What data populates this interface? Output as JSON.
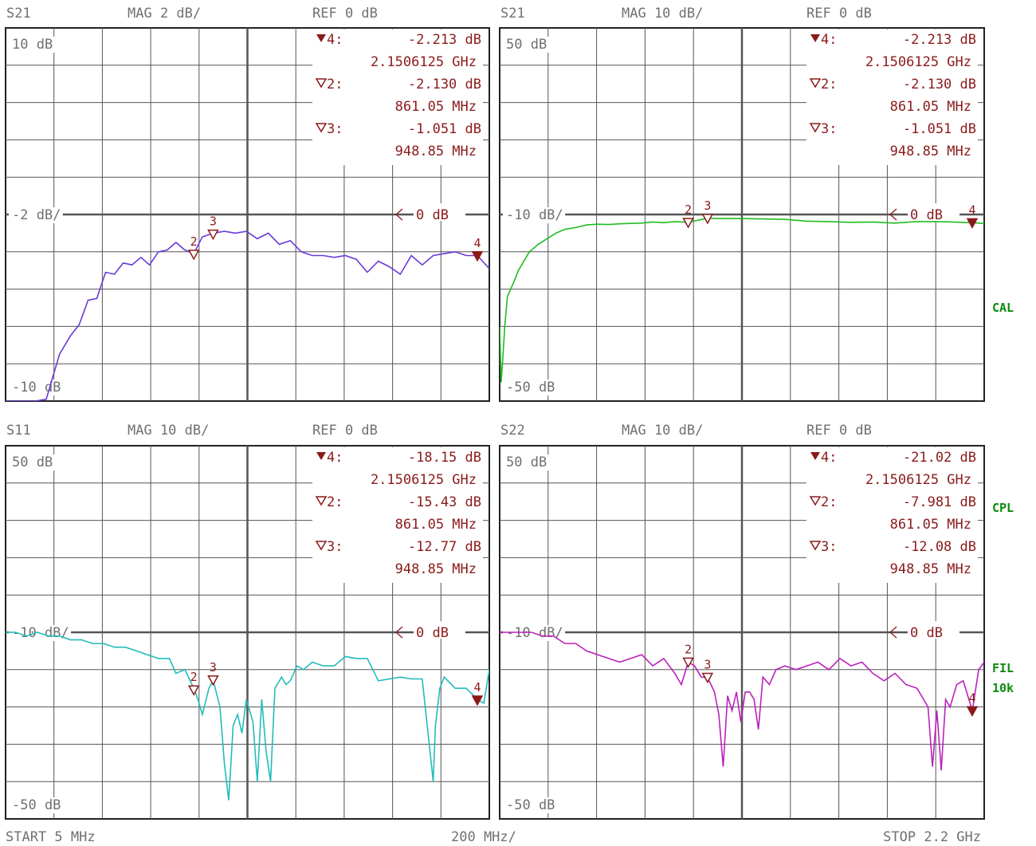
{
  "footer": {
    "start": "START  5 MHz",
    "div": "200 MHz/",
    "stop": "STOP 2.2 GHz"
  },
  "side_labels": [
    "CAL",
    "CPL",
    "FIL",
    "10k"
  ],
  "colors": {
    "grid": "#555555",
    "marker": "#8b1a1a",
    "border": "#222222"
  },
  "chart_data": [
    {
      "type": "line",
      "param": "S21",
      "scale": "MAG 2 dB/",
      "ref": "REF 0 dB",
      "top_label": "10 dB",
      "mid_label": "-2 dB/",
      "bot_label": "-10 dB",
      "ref_mark": "0 dB",
      "ylim": [
        -10,
        10
      ],
      "xlim": [
        5,
        2205
      ],
      "color": "#6a3ad8",
      "markers_text": [
        {
          "id": "4",
          "label": "4:",
          "value": "-2.213 dB",
          "freq": "2.1506125 GHz",
          "filled": true
        },
        {
          "id": "2",
          "label": "2:",
          "value": "-2.130 dB",
          "freq": "861.05 MHz",
          "filled": false
        },
        {
          "id": "3",
          "label": "3:",
          "value": "-1.051 dB",
          "freq": "948.85 MHz",
          "filled": false
        }
      ],
      "markers": [
        {
          "id": "2",
          "x": 861.05,
          "y": -2.13,
          "filled": false
        },
        {
          "id": "3",
          "x": 948.85,
          "y": -1.051,
          "filled": false
        },
        {
          "id": "4",
          "x": 2150.6,
          "y": -2.213,
          "filled": true
        }
      ],
      "x": [
        5,
        60,
        100,
        140,
        190,
        250,
        300,
        340,
        380,
        420,
        460,
        500,
        540,
        580,
        620,
        660,
        700,
        740,
        780,
        820,
        861,
        900,
        949,
        1000,
        1050,
        1100,
        1150,
        1200,
        1250,
        1300,
        1350,
        1400,
        1450,
        1500,
        1550,
        1600,
        1650,
        1700,
        1750,
        1800,
        1850,
        1900,
        1950,
        2000,
        2050,
        2100,
        2151,
        2205
      ],
      "y": [
        -10,
        -10,
        -10,
        -10,
        -9.9,
        -7.5,
        -6.5,
        -5.9,
        -4.6,
        -4.5,
        -3.1,
        -3.2,
        -2.6,
        -2.7,
        -2.3,
        -2.7,
        -2.0,
        -1.9,
        -1.5,
        -1.9,
        -2.1,
        -1.2,
        -1.0,
        -0.9,
        -1.0,
        -0.9,
        -1.3,
        -1.0,
        -1.6,
        -1.4,
        -2.0,
        -2.2,
        -2.2,
        -2.3,
        -2.2,
        -2.4,
        -3.1,
        -2.5,
        -2.8,
        -3.2,
        -2.2,
        -2.7,
        -2.2,
        -2.1,
        -2.0,
        -2.2,
        -2.2,
        -2.9
      ]
    },
    {
      "type": "line",
      "param": "S21",
      "scale": "MAG 10 dB/",
      "ref": "REF 0 dB",
      "top_label": "50 dB",
      "mid_label": "-10 dB/",
      "bot_label": "-50 dB",
      "ref_mark": "0 dB",
      "ylim": [
        -50,
        50
      ],
      "xlim": [
        5,
        2205
      ],
      "color": "#22bb22",
      "markers_text": [
        {
          "id": "4",
          "label": "4:",
          "value": "-2.213 dB",
          "freq": "2.1506125 GHz",
          "filled": true
        },
        {
          "id": "2",
          "label": "2:",
          "value": "-2.130 dB",
          "freq": "861.05 MHz",
          "filled": false
        },
        {
          "id": "3",
          "label": "3:",
          "value": "-1.051 dB",
          "freq": "948.85 MHz",
          "filled": false
        }
      ],
      "markers": [
        {
          "id": "2",
          "x": 861.05,
          "y": -2.13,
          "filled": false
        },
        {
          "id": "3",
          "x": 948.85,
          "y": -1.051,
          "filled": false
        },
        {
          "id": "4",
          "x": 2150.6,
          "y": -2.213,
          "filled": true
        }
      ],
      "x": [
        5,
        12,
        20,
        28,
        40,
        55,
        70,
        90,
        110,
        140,
        180,
        220,
        260,
        300,
        350,
        400,
        450,
        500,
        550,
        600,
        650,
        700,
        750,
        800,
        861,
        900,
        949,
        1000,
        1100,
        1200,
        1300,
        1400,
        1500,
        1600,
        1700,
        1800,
        1900,
        2000,
        2100,
        2151,
        2205
      ],
      "y": [
        -30,
        -45,
        -38,
        -30,
        -22,
        -20,
        -18,
        -15,
        -13,
        -10,
        -8,
        -6.5,
        -5,
        -4,
        -3.5,
        -2.8,
        -2.6,
        -2.7,
        -2.5,
        -2.4,
        -2.3,
        -2.0,
        -2.2,
        -1.9,
        -2.1,
        -1.6,
        -1.0,
        -1.1,
        -1.1,
        -1.2,
        -1.3,
        -1.8,
        -1.9,
        -2.1,
        -2.0,
        -2.3,
        -1.9,
        -1.9,
        -2.1,
        -2.2,
        -2.4
      ]
    },
    {
      "type": "line",
      "param": "S11",
      "scale": "MAG 10 dB/",
      "ref": "REF 0 dB",
      "top_label": "50 dB",
      "mid_label": "-10 dB/",
      "bot_label": "-50 dB",
      "ref_mark": "0 dB",
      "ylim": [
        -50,
        50
      ],
      "xlim": [
        5,
        2205
      ],
      "color": "#22bbbb",
      "markers_text": [
        {
          "id": "4",
          "label": "4:",
          "value": "-18.15 dB",
          "freq": "2.1506125 GHz",
          "filled": true
        },
        {
          "id": "2",
          "label": "2:",
          "value": "-15.43 dB",
          "freq": "861.05 MHz",
          "filled": false
        },
        {
          "id": "3",
          "label": "3:",
          "value": "-12.77 dB",
          "freq": "948.85 MHz",
          "filled": false
        }
      ],
      "markers": [
        {
          "id": "2",
          "x": 861.05,
          "y": -15.43,
          "filled": false
        },
        {
          "id": "3",
          "x": 948.85,
          "y": -12.77,
          "filled": false
        },
        {
          "id": "4",
          "x": 2150.6,
          "y": -18.15,
          "filled": true
        }
      ],
      "x": [
        5,
        50,
        100,
        150,
        200,
        250,
        300,
        350,
        400,
        450,
        500,
        550,
        600,
        650,
        700,
        750,
        780,
        820,
        861,
        880,
        900,
        930,
        949,
        980,
        1000,
        1020,
        1040,
        1060,
        1080,
        1100,
        1130,
        1150,
        1170,
        1190,
        1210,
        1230,
        1260,
        1280,
        1300,
        1330,
        1360,
        1400,
        1450,
        1500,
        1550,
        1600,
        1650,
        1700,
        1750,
        1800,
        1850,
        1900,
        1950,
        1960,
        1980,
        2000,
        2050,
        2100,
        2151,
        2180,
        2205
      ],
      "y": [
        0,
        0,
        -1,
        0,
        -1,
        -1,
        -2,
        -2,
        -3,
        -3,
        -4,
        -4,
        -5,
        -6,
        -7,
        -7,
        -11,
        -10,
        -15,
        -18,
        -22,
        -15,
        -12.8,
        -20,
        -35,
        -45,
        -25,
        -22,
        -27,
        -18,
        -24,
        -40,
        -18,
        -32,
        -40,
        -15,
        -12,
        -14,
        -13,
        -9,
        -10,
        -8,
        -9,
        -9,
        -6.5,
        -7,
        -7,
        -13,
        -12.5,
        -12,
        -12.5,
        -12.5,
        -40,
        -25,
        -15,
        -12,
        -15,
        -15,
        -18,
        -19,
        -10
      ]
    },
    {
      "type": "line",
      "param": "S22",
      "scale": "MAG 10 dB/",
      "ref": "REF 0 dB",
      "top_label": "50 dB",
      "mid_label": "-10 dB/",
      "bot_label": "-50 dB",
      "ref_mark": "0 dB",
      "ylim": [
        -50,
        50
      ],
      "xlim": [
        5,
        2205
      ],
      "color": "#bb22bb",
      "markers_text": [
        {
          "id": "4",
          "label": "4:",
          "value": "-21.02 dB",
          "freq": "2.1506125 GHz",
          "filled": true
        },
        {
          "id": "2",
          "label": "2:",
          "value": "-7.981 dB",
          "freq": "861.05 MHz",
          "filled": false
        },
        {
          "id": "3",
          "label": "3:",
          "value": "-12.08 dB",
          "freq": "948.85 MHz",
          "filled": false
        }
      ],
      "markers": [
        {
          "id": "2",
          "x": 861.05,
          "y": -7.981,
          "filled": false
        },
        {
          "id": "3",
          "x": 948.85,
          "y": -12.08,
          "filled": false
        },
        {
          "id": "4",
          "x": 2150.6,
          "y": -21.02,
          "filled": true
        }
      ],
      "x": [
        5,
        50,
        100,
        150,
        200,
        250,
        300,
        350,
        400,
        450,
        500,
        550,
        600,
        650,
        700,
        750,
        800,
        830,
        861,
        890,
        920,
        949,
        980,
        1000,
        1020,
        1040,
        1060,
        1080,
        1100,
        1120,
        1140,
        1160,
        1180,
        1200,
        1230,
        1260,
        1300,
        1350,
        1400,
        1450,
        1500,
        1550,
        1600,
        1650,
        1700,
        1750,
        1800,
        1850,
        1900,
        1950,
        1970,
        1990,
        2010,
        2030,
        2050,
        2080,
        2110,
        2151,
        2180,
        2205
      ],
      "y": [
        0,
        0,
        0,
        0,
        -1,
        -1,
        -3,
        -3,
        -5,
        -6,
        -7,
        -8,
        -7,
        -6,
        -9,
        -7,
        -11,
        -14,
        -8,
        -9,
        -12,
        -12.1,
        -16,
        -22,
        -36,
        -17,
        -21,
        -16,
        -24,
        -16,
        -16,
        -18,
        -26,
        -12,
        -14,
        -10,
        -9,
        -10,
        -9,
        -8,
        -10,
        -7,
        -9,
        -8,
        -11,
        -13,
        -11,
        -14,
        -15,
        -20,
        -36,
        -21,
        -37,
        -18,
        -20,
        -14,
        -13,
        -21,
        -10,
        -8
      ]
    }
  ]
}
